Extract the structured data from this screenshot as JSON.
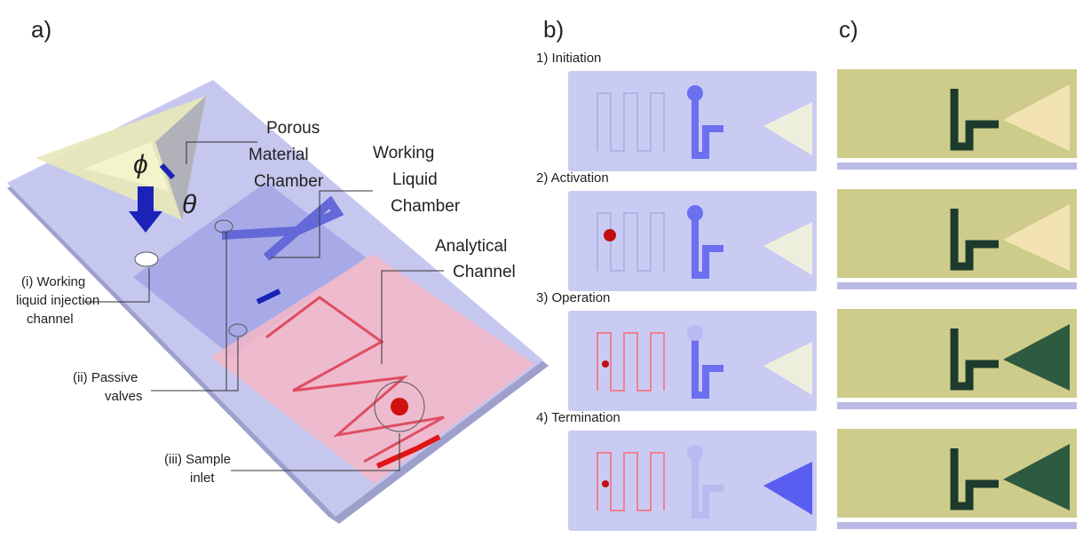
{
  "panel_labels": [
    "a)",
    "b)",
    "c)"
  ],
  "panel_a": {
    "porous_material_chamber": [
      "Porous",
      "Material",
      "Chamber"
    ],
    "working_liquid_chamber": [
      "Working",
      "Liquid",
      "Chamber"
    ],
    "analytical_channel": [
      "Analytical",
      "Channel"
    ],
    "injection_channel": [
      "(i) Working",
      "liquid injection",
      "channel"
    ],
    "passive_valves": [
      "(ii) Passive",
      "valves"
    ],
    "sample_inlet": [
      "(iii) Sample",
      "inlet"
    ],
    "symbols": [
      "ϕ",
      "θ"
    ]
  },
  "panel_b": {
    "steps": [
      "1) Initiation",
      "2) Activation",
      "3) Operation",
      "4) Termination"
    ]
  }
}
